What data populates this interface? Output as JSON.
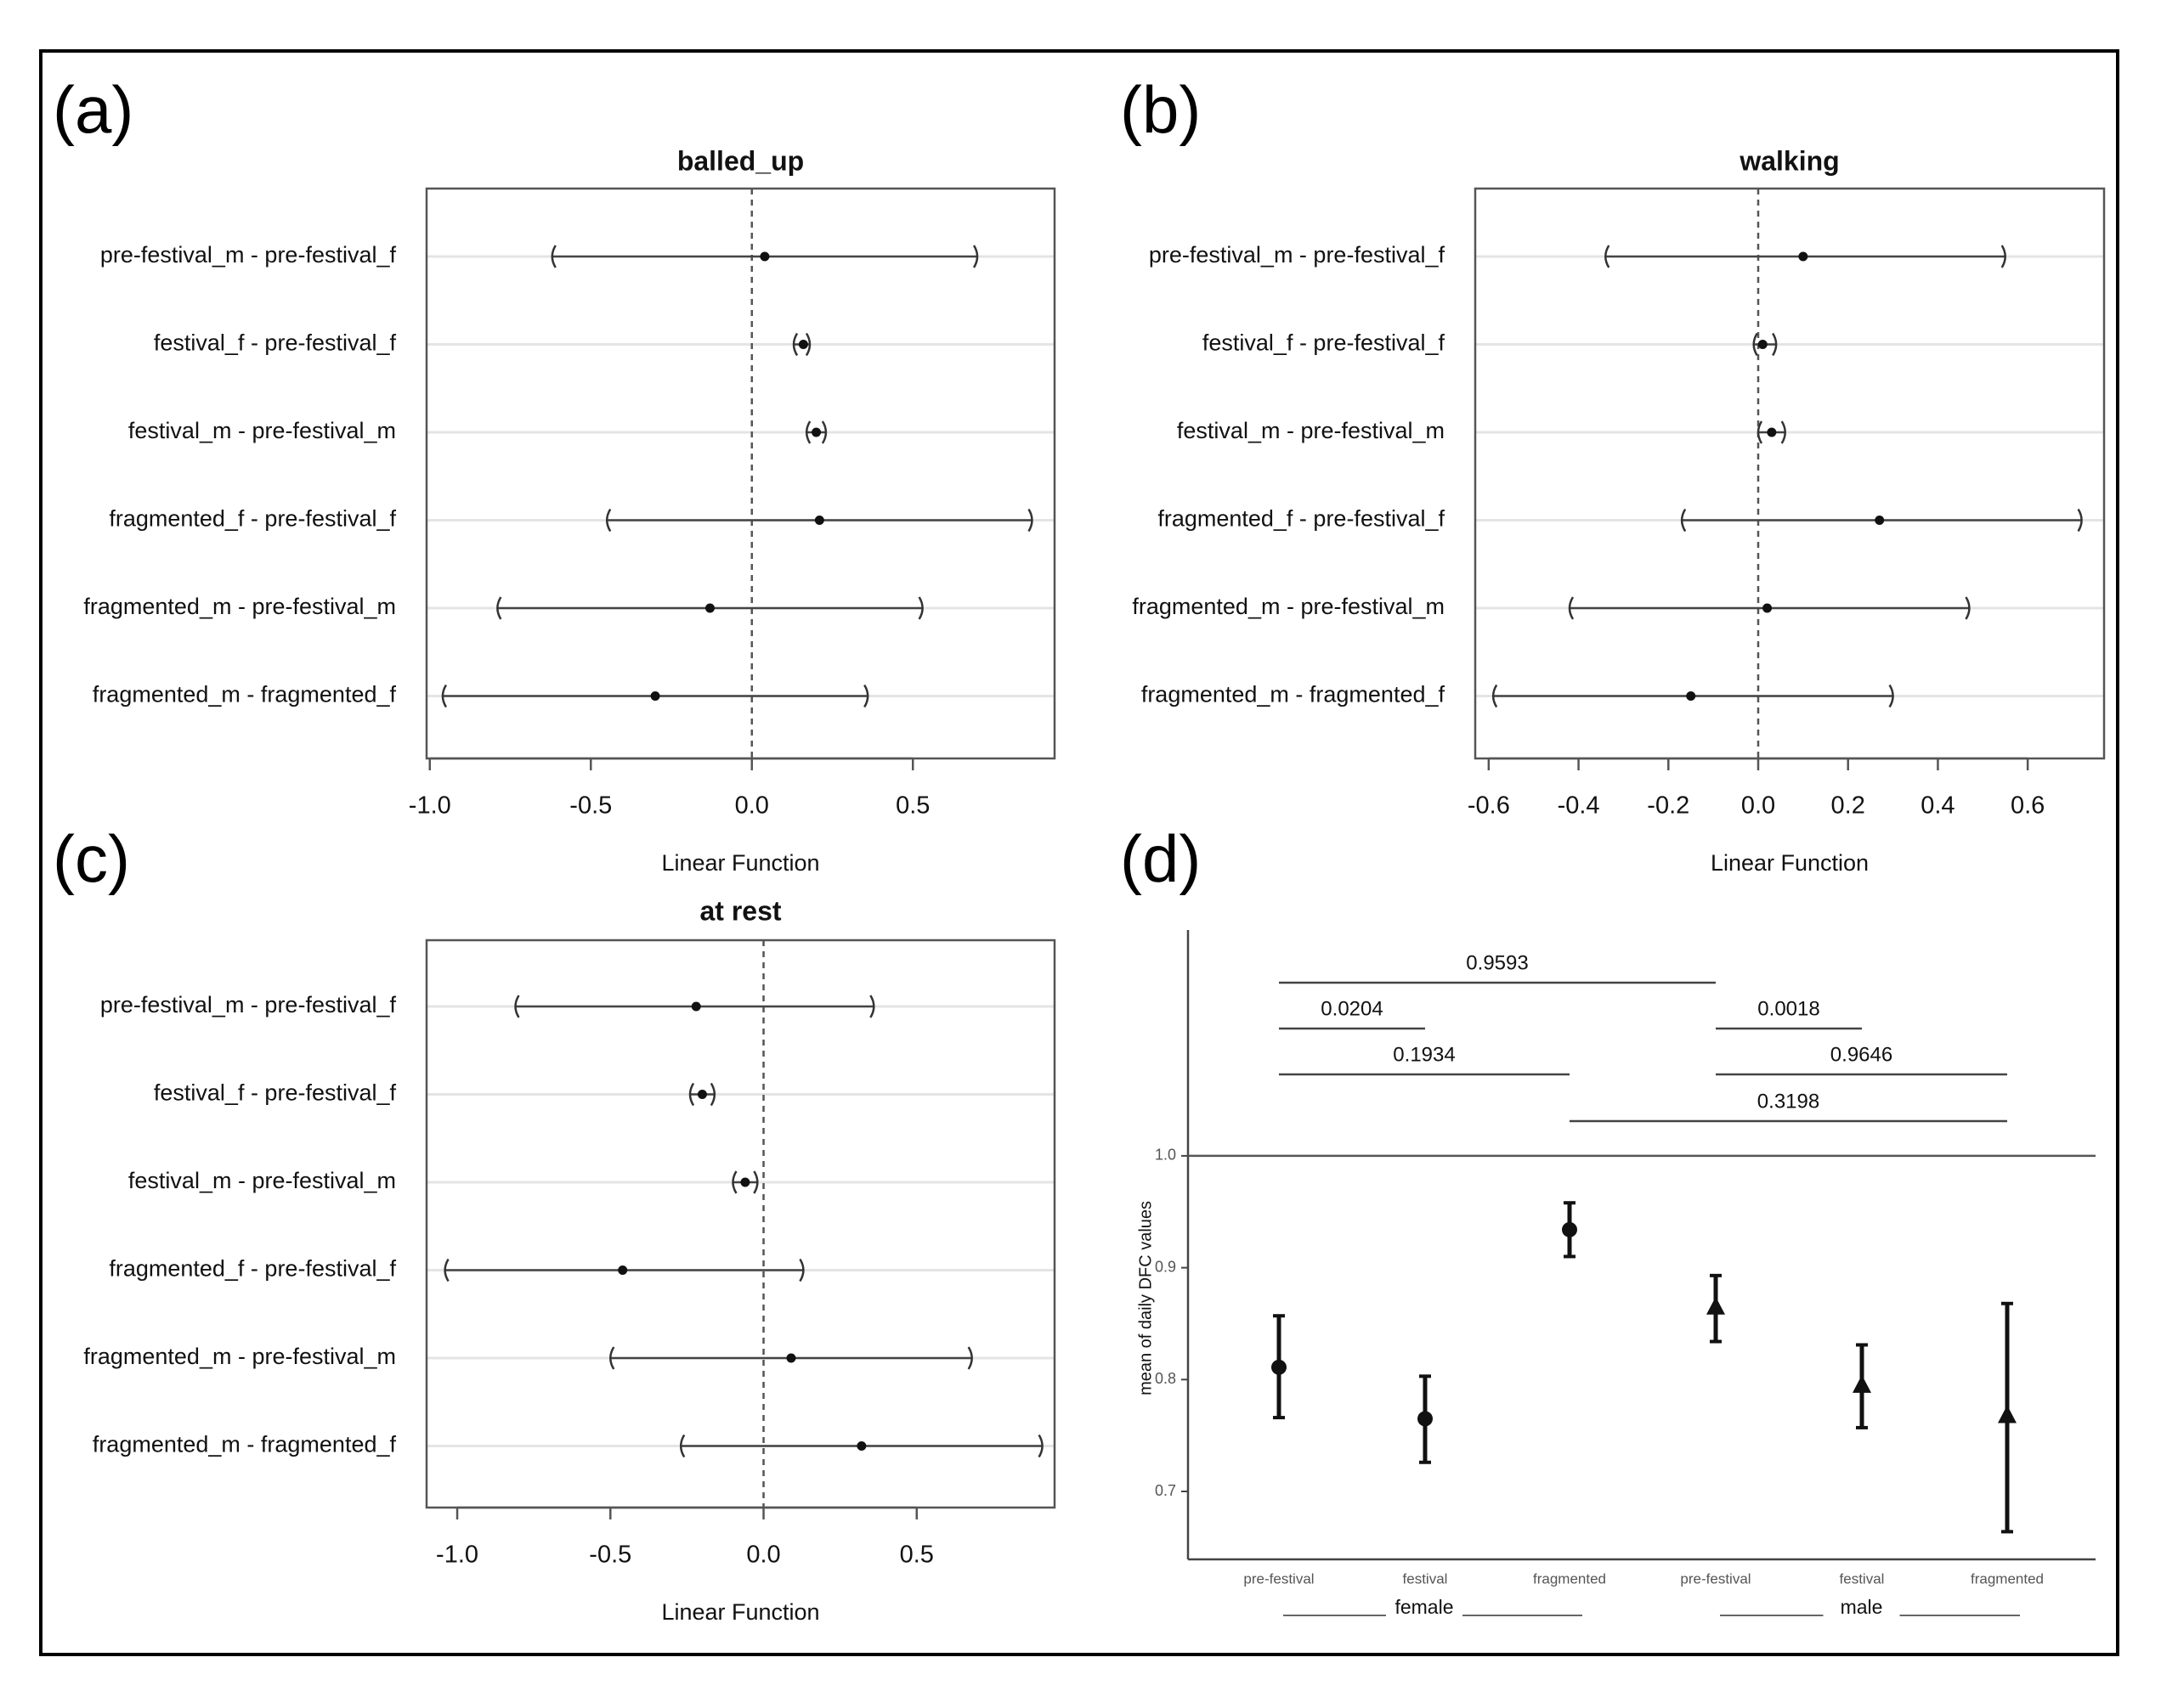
{
  "panel_labels": {
    "a": "(a)",
    "b": "(b)",
    "c": "(c)",
    "d": "(d)"
  },
  "chart_data": [
    {
      "id": "a",
      "type": "forest",
      "title": "balled_up",
      "xlabel": "Linear Function",
      "xlim": [
        -1.01,
        0.94
      ],
      "ticks": [
        "-1.0",
        "-0.5",
        "0.0",
        "0.5"
      ],
      "tick_values": [
        -1.0,
        -0.5,
        0.0,
        0.5
      ],
      "rows": [
        {
          "label": "pre-festival_m - pre-festival_f",
          "estimate": 0.04,
          "lower": -0.62,
          "upper": 0.7
        },
        {
          "label": "festival_f - pre-festival_f",
          "estimate": 0.16,
          "lower": 0.13,
          "upper": 0.18
        },
        {
          "label": "festival_m - pre-festival_m",
          "estimate": 0.2,
          "lower": 0.17,
          "upper": 0.23
        },
        {
          "label": "fragmented_f - pre-festival_f",
          "estimate": 0.21,
          "lower": -0.45,
          "upper": 0.87
        },
        {
          "label": "fragmented_m - pre-festival_m",
          "estimate": -0.13,
          "lower": -0.79,
          "upper": 0.53
        },
        {
          "label": "fragmented_m - fragmented_f",
          "estimate": -0.3,
          "lower": -0.96,
          "upper": 0.36
        }
      ]
    },
    {
      "id": "b",
      "type": "forest",
      "title": "walking",
      "xlabel": "Linear Function",
      "xlim": [
        -0.63,
        0.77
      ],
      "ticks": [
        "-0.6",
        "-0.4",
        "-0.2",
        "0.0",
        "0.2",
        "0.4",
        "0.6"
      ],
      "tick_values": [
        -0.6,
        -0.4,
        -0.2,
        0.0,
        0.2,
        0.4,
        0.6
      ],
      "rows": [
        {
          "label": "pre-festival_m - pre-festival_f",
          "estimate": 0.1,
          "lower": -0.34,
          "upper": 0.55
        },
        {
          "label": "festival_f - pre-festival_f",
          "estimate": 0.01,
          "lower": -0.01,
          "upper": 0.04
        },
        {
          "label": "festival_m - pre-festival_m",
          "estimate": 0.03,
          "lower": 0.0,
          "upper": 0.06
        },
        {
          "label": "fragmented_f - pre-festival_f",
          "estimate": 0.27,
          "lower": -0.17,
          "upper": 0.72
        },
        {
          "label": "fragmented_m - pre-festival_m",
          "estimate": 0.02,
          "lower": -0.42,
          "upper": 0.47
        },
        {
          "label": "fragmented_m - fragmented_f",
          "estimate": -0.15,
          "lower": -0.59,
          "upper": 0.3
        }
      ]
    },
    {
      "id": "c",
      "type": "forest",
      "title": "at rest",
      "xlabel": "Linear Function",
      "xlim": [
        -1.1,
        0.95
      ],
      "ticks": [
        "-1.0",
        "-0.5",
        "0.0",
        "0.5"
      ],
      "tick_values": [
        -1.0,
        -0.5,
        0.0,
        0.5
      ],
      "rows": [
        {
          "label": "pre-festival_m - pre-festival_f",
          "estimate": -0.22,
          "lower": -0.81,
          "upper": 0.36
        },
        {
          "label": "festival_f - pre-festival_f",
          "estimate": -0.2,
          "lower": -0.24,
          "upper": -0.16
        },
        {
          "label": "festival_m - pre-festival_m",
          "estimate": -0.06,
          "lower": -0.1,
          "upper": -0.02
        },
        {
          "label": "fragmented_f - pre-festival_f",
          "estimate": -0.46,
          "lower": -1.04,
          "upper": 0.13
        },
        {
          "label": "fragmented_m - pre-festival_m",
          "estimate": 0.09,
          "lower": -0.5,
          "upper": 0.68
        },
        {
          "label": "fragmented_m - fragmented_f",
          "estimate": 0.32,
          "lower": -0.27,
          "upper": 0.91
        }
      ]
    },
    {
      "id": "d",
      "type": "scatter",
      "ylabel": "mean of daily DFC values",
      "ylim": [
        0.64,
        1.2
      ],
      "yticks": [
        "0.7",
        "0.8",
        "0.9",
        "1.0"
      ],
      "ytick_values": [
        0.7,
        0.8,
        0.9,
        1.0
      ],
      "reference_line": 1.0,
      "categories": [
        "pre-festival",
        "festival",
        "fragmented",
        "pre-festival",
        "festival",
        "fragmented"
      ],
      "groups": [
        {
          "label": "female",
          "marker": "circle",
          "range": [
            0,
            2
          ]
        },
        {
          "label": "male",
          "marker": "triangle",
          "range": [
            3,
            5
          ]
        }
      ],
      "points": [
        {
          "mean": 0.811,
          "lower": 0.766,
          "upper": 0.857,
          "marker": "circle"
        },
        {
          "mean": 0.765,
          "lower": 0.726,
          "upper": 0.803,
          "marker": "circle"
        },
        {
          "mean": 0.934,
          "lower": 0.91,
          "upper": 0.958,
          "marker": "circle"
        },
        {
          "mean": 0.865,
          "lower": 0.834,
          "upper": 0.893,
          "marker": "triangle"
        },
        {
          "mean": 0.795,
          "lower": 0.757,
          "upper": 0.831,
          "marker": "triangle"
        },
        {
          "mean": 0.768,
          "lower": 0.664,
          "upper": 0.868,
          "marker": "triangle"
        }
      ],
      "comparisons": [
        {
          "from": 0,
          "to": 3,
          "level": 4,
          "p": "0.9593"
        },
        {
          "from": 0,
          "to": 1,
          "level": 3,
          "p": "0.0204"
        },
        {
          "from": 3,
          "to": 4,
          "level": 3,
          "p": "0.0018"
        },
        {
          "from": 0,
          "to": 2,
          "level": 2,
          "p": "0.1934"
        },
        {
          "from": 3,
          "to": 5,
          "level": 2,
          "p": "0.9646"
        },
        {
          "from": 2,
          "to": 5,
          "level": 1,
          "p": "0.3198"
        }
      ]
    }
  ]
}
